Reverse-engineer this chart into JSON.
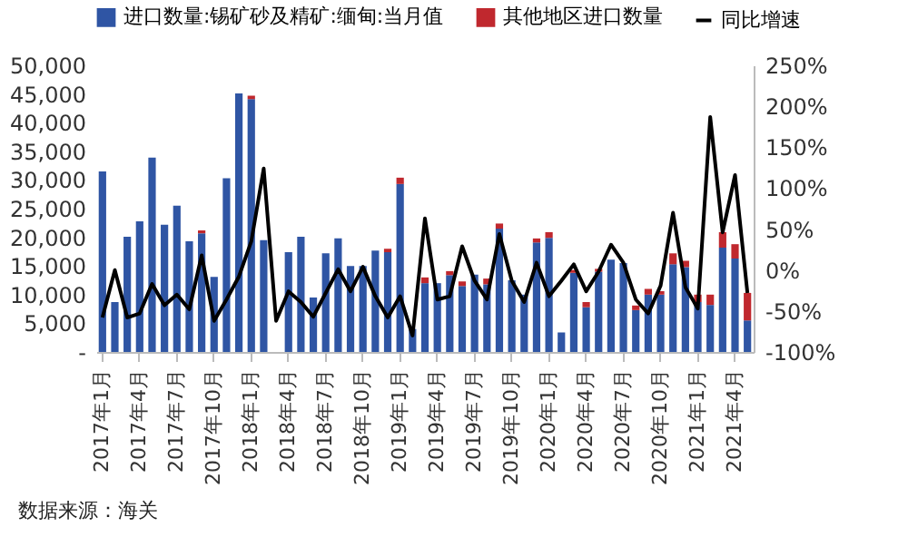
{
  "chart_data": {
    "type": "bar",
    "stacked": true,
    "legend": "top",
    "categories": [
      "2017年1月",
      null,
      null,
      "2017年4月",
      null,
      null,
      "2017年7月",
      null,
      null,
      "2017年10月",
      null,
      null,
      "2018年1月",
      null,
      null,
      "2018年4月",
      null,
      null,
      "2018年7月",
      null,
      null,
      "2018年10月",
      null,
      null,
      "2019年1月",
      null,
      null,
      "2019年4月",
      null,
      null,
      "2019年7月",
      null,
      null,
      "2019年10月",
      null,
      null,
      "2020年1月",
      null,
      null,
      "2020年4月",
      null,
      null,
      "2020年7月",
      null,
      null,
      "2020年10月",
      null,
      null,
      "2021年1月",
      null,
      null,
      "2021年4月",
      null
    ],
    "series": [
      {
        "name": "进口数量:锡矿砂及精矿:缅甸:当月值",
        "color": "#2f55a4",
        "values": [
          31500,
          8700,
          20100,
          22800,
          33900,
          22200,
          25500,
          19300,
          20700,
          13100,
          30300,
          45100,
          44100,
          19500,
          null,
          17400,
          20100,
          9500,
          17200,
          19800,
          15000,
          15000,
          17700,
          17400,
          29300,
          4000,
          12000,
          12000,
          13400,
          11500,
          13500,
          11800,
          21500,
          12500,
          10000,
          19100,
          19900,
          3400,
          13800,
          7800,
          14000,
          16100,
          15500,
          7300,
          10000,
          10000,
          15300,
          14800,
          8700,
          8200,
          18200,
          16300,
          5500
        ]
      },
      {
        "name": "其他地区进口数量",
        "color": "#c0282e",
        "values": [
          0,
          0,
          0,
          0,
          0,
          0,
          0,
          0,
          500,
          0,
          0,
          0,
          600,
          0,
          null,
          0,
          0,
          0,
          0,
          0,
          0,
          0,
          0,
          600,
          1100,
          0,
          1000,
          0,
          700,
          800,
          0,
          1000,
          900,
          0,
          0,
          700,
          1000,
          0,
          500,
          900,
          500,
          0,
          0,
          800,
          1000,
          600,
          1900,
          1100,
          1300,
          1800,
          2700,
          2500,
          4800
        ]
      },
      {
        "name": "同比增速",
        "type": "line",
        "axis": "y2",
        "color": "#000000",
        "values": [
          -58,
          0,
          -58,
          -53,
          -17,
          -43,
          -30,
          -48,
          18,
          -62,
          -36,
          -8,
          35,
          124,
          -62,
          -26,
          -39,
          -57,
          -28,
          1,
          -26,
          4,
          -32,
          -58,
          -32,
          -80,
          63,
          -36,
          -32,
          29,
          -13,
          -36,
          44,
          -13,
          -39,
          9,
          -32,
          -13,
          7,
          -26,
          -2,
          31,
          9,
          -36,
          -53,
          -19,
          70,
          -21,
          -47,
          187,
          46,
          116,
          -28
        ]
      }
    ],
    "ylim": [
      0,
      50000
    ],
    "yticks": [
      {
        "value": 0,
        "label": "-"
      },
      {
        "value": 5000,
        "label": "5,000"
      },
      {
        "value": 10000,
        "label": "10,000"
      },
      {
        "value": 15000,
        "label": "15,000"
      },
      {
        "value": 20000,
        "label": "20,000"
      },
      {
        "value": 25000,
        "label": "25,000"
      },
      {
        "value": 30000,
        "label": "30,000"
      },
      {
        "value": 35000,
        "label": "35,000"
      },
      {
        "value": 40000,
        "label": "40,000"
      },
      {
        "value": 45000,
        "label": "45,000"
      },
      {
        "value": 50000,
        "label": "50,000"
      }
    ],
    "y2lim": [
      -100,
      250
    ],
    "y2ticks": [
      {
        "value": -100,
        "label": "-100%"
      },
      {
        "value": -50,
        "label": "-50%"
      },
      {
        "value": 0,
        "label": "0%"
      },
      {
        "value": 50,
        "label": "50%"
      },
      {
        "value": 100,
        "label": "100%"
      },
      {
        "value": 150,
        "label": "150%"
      },
      {
        "value": 200,
        "label": "200%"
      },
      {
        "value": 250,
        "label": "250%"
      }
    ],
    "annotations": [
      "数据来源：海关"
    ]
  }
}
